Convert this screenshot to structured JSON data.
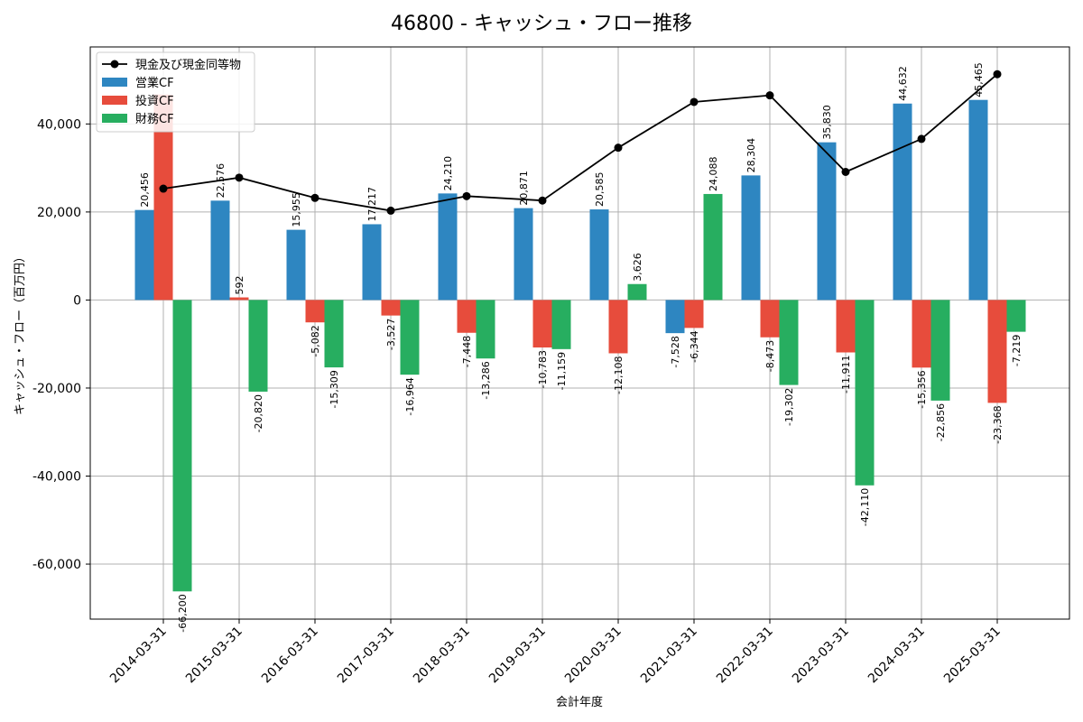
{
  "chart_data": {
    "type": "bar",
    "title": "46800 - キャッシュ・フロー推移",
    "xlabel": "会計年度",
    "ylabel": "キャッシュ・フロー（百万円）",
    "ylim": [
      -72500,
      57500
    ],
    "yticks": [
      -60000,
      -40000,
      -20000,
      0,
      20000,
      40000
    ],
    "ytick_labels": [
      "-60,000",
      "-40,000",
      "-20,000",
      "0",
      "20,000",
      "40,000"
    ],
    "grid": true,
    "legend_position": "top-left",
    "categories": [
      "2014-03-31",
      "2015-03-31",
      "2016-03-31",
      "2017-03-31",
      "2018-03-31",
      "2019-03-31",
      "2020-03-31",
      "2021-03-31",
      "2022-03-31",
      "2023-03-31",
      "2024-03-31",
      "2025-03-31"
    ],
    "series": [
      {
        "name": "営業CF",
        "kind": "bar",
        "color": "#2e86c1",
        "values": [
          20456,
          22576,
          15955,
          17217,
          24210,
          20871,
          20585,
          -7528,
          28304,
          35830,
          44632,
          45465
        ],
        "labels": [
          "20,456",
          "22,576",
          "15,955",
          "17,217",
          "24,210",
          "20,871",
          "20,585",
          "-7,528",
          "28,304",
          "35,830",
          "44,632",
          "45,465"
        ]
      },
      {
        "name": "投資CF",
        "kind": "bar",
        "color": "#e74c3c",
        "values": [
          46700,
          592,
          -5082,
          -3527,
          -7448,
          -10783,
          -12108,
          -6344,
          -8473,
          -11911,
          -15356,
          -23368
        ],
        "labels": [
          "",
          "592",
          "-5,082",
          "-3,527",
          "-7,448",
          "-10,783",
          "-12,108",
          "-6,344",
          "-8,473",
          "-11,911",
          "-15,356",
          "-23,368"
        ]
      },
      {
        "name": "財務CF",
        "kind": "bar",
        "color": "#27ae60",
        "values": [
          -66200,
          -20820,
          -15309,
          -16964,
          -13286,
          -11159,
          3626,
          24088,
          -19302,
          -42110,
          -22856,
          -7219
        ],
        "labels": [
          "-66,200",
          "-20,820",
          "-15,309",
          "-16,964",
          "-13,286",
          "-11,159",
          "3,626",
          "24,088",
          "-19,302",
          "-42,110",
          "-22,856",
          "-7,219"
        ]
      },
      {
        "name": "現金及び現金同等物",
        "kind": "line",
        "color": "#000000",
        "values": [
          25300,
          27800,
          23200,
          20300,
          23600,
          22600,
          34600,
          45000,
          46500,
          29100,
          36600,
          51300
        ]
      }
    ]
  }
}
